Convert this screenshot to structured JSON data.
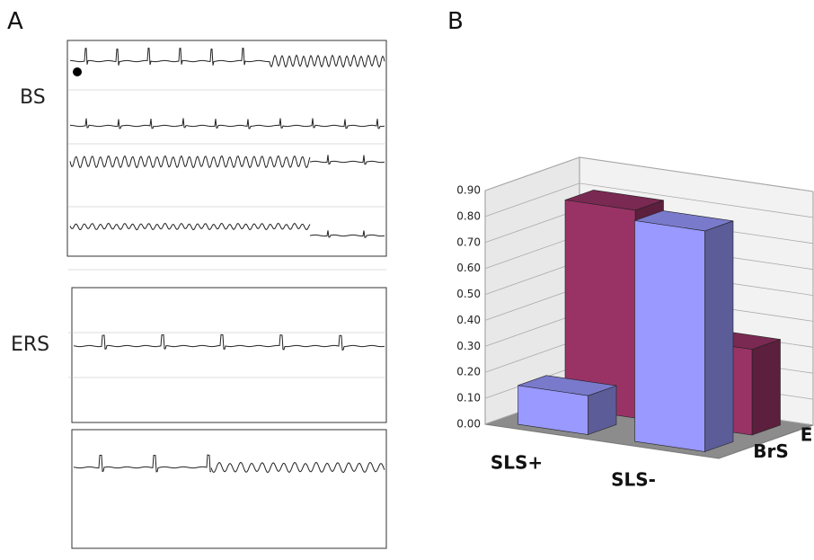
{
  "panel_a": {
    "label": "A",
    "rows": [
      "BS",
      "ERS"
    ]
  },
  "chart_data": {
    "type": "bar3d",
    "panel_label": "B",
    "categories": [
      "SLS+",
      "SLS-"
    ],
    "series": [
      {
        "name": "BrS",
        "color": "#9999ff",
        "values": [
          0.15,
          0.85
        ]
      },
      {
        "name": "ERS",
        "color": "#993366",
        "values": [
          0.8,
          0.33
        ]
      }
    ],
    "ylim": [
      0,
      0.9
    ],
    "yticks": [
      {
        "value": 0,
        "label": "0.00"
      },
      {
        "value": 0.1,
        "label": "0.10"
      },
      {
        "value": 0.2,
        "label": "0.20"
      },
      {
        "value": 0.3,
        "label": "0.30"
      },
      {
        "value": 0.4,
        "label": "0.40"
      },
      {
        "value": 0.5,
        "label": "0.50"
      },
      {
        "value": 0.6,
        "label": "0.60"
      },
      {
        "value": 0.7,
        "label": "0.70"
      },
      {
        "value": 0.8,
        "label": "0.80"
      },
      {
        "value": 0.9,
        "label": "0.90"
      }
    ],
    "grid": true
  }
}
